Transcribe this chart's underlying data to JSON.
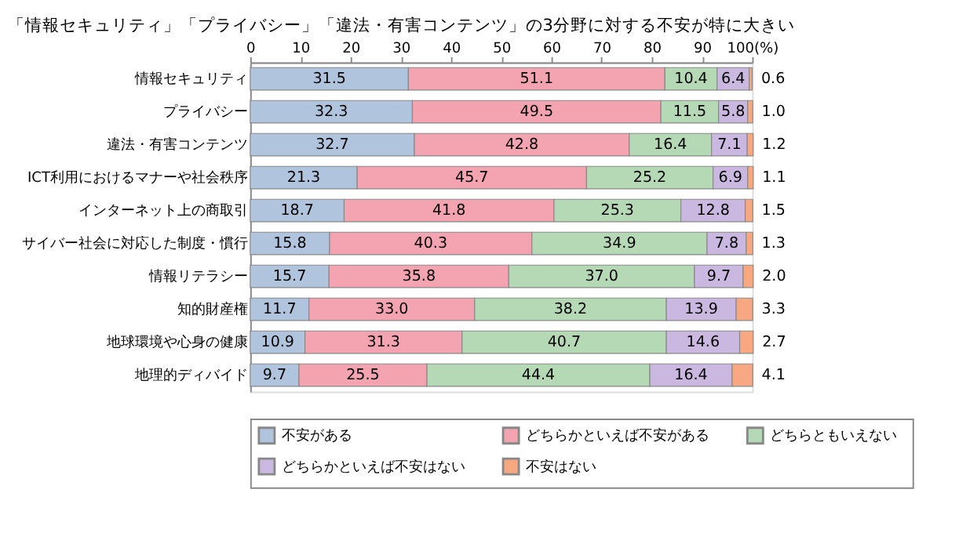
{
  "chart_data": {
    "type": "bar",
    "orientation": "horizontal",
    "stacked": true,
    "legend": "bottom",
    "grid": false,
    "title": "「情報セキュリティ」「プライバシー」「違法・有害コンテンツ」の3分野に対する不安が特に大きい",
    "categories": [
      "情報セキュリティ",
      "プライバシー",
      "違法・有害コンテンツ",
      "ICT利用におけるマナーや社会秩序",
      "インターネット上の商取引",
      "サイバー社会に対応した制度・慣行",
      "情報リテラシー",
      "知的財産権",
      "地球環境や心身の健康",
      "地理的ディバイド"
    ],
    "xlim": [
      0,
      100
    ],
    "xticks": [
      0,
      10,
      20,
      30,
      40,
      50,
      60,
      70,
      80,
      90,
      {
        "value": 100,
        "label": "100(%)"
      }
    ],
    "series": [
      {
        "name": "不安がある",
        "color": "#b0c4de",
        "values": [
          31.5,
          32.3,
          32.7,
          21.3,
          18.7,
          15.8,
          15.7,
          11.7,
          10.9,
          9.7
        ],
        "value_labels": [
          "31.5",
          "32.3",
          "32.7",
          "21.3",
          "18.7",
          "15.8",
          "15.7",
          "11.7",
          "10.9",
          "9.7"
        ]
      },
      {
        "name": "どちらかといえば不安がある",
        "color": "#f4a3b0",
        "values": [
          51.1,
          49.5,
          42.8,
          45.7,
          41.8,
          40.3,
          35.8,
          33.0,
          31.3,
          25.5
        ],
        "value_labels": [
          "51.1",
          "49.5",
          "42.8",
          "45.7",
          "41.8",
          "40.3",
          "35.8",
          "33.0",
          "31.3",
          "25.5"
        ]
      },
      {
        "name": "どちらともいえない",
        "color": "#b5d8b5",
        "values": [
          10.4,
          11.5,
          16.4,
          25.2,
          25.3,
          34.9,
          37.0,
          38.2,
          40.7,
          44.4
        ],
        "value_labels": [
          "10.4",
          "11.5",
          "16.4",
          "25.2",
          "25.3",
          "34.9",
          "37.0",
          "38.2",
          "40.7",
          "44.4"
        ]
      },
      {
        "name": "どちらかといえば不安はない",
        "color": "#cbb8e0",
        "values": [
          6.4,
          5.8,
          7.1,
          6.9,
          12.8,
          7.8,
          9.7,
          13.9,
          14.6,
          16.4
        ],
        "value_labels": [
          "6.4",
          "5.8",
          "7.1",
          "6.9",
          "12.8",
          "7.8",
          "9.7",
          "13.9",
          "14.6",
          "16.4"
        ]
      },
      {
        "name": "不安はない",
        "color": "#f8a880",
        "values": [
          0.6,
          1.0,
          1.2,
          1.1,
          1.5,
          1.3,
          2.0,
          3.3,
          2.7,
          4.1
        ],
        "value_labels": [
          "0.6",
          "1.0",
          "1.2",
          "1.1",
          "1.5",
          "1.3",
          "2.0",
          "3.3",
          "2.7",
          "4.1"
        ]
      }
    ]
  }
}
